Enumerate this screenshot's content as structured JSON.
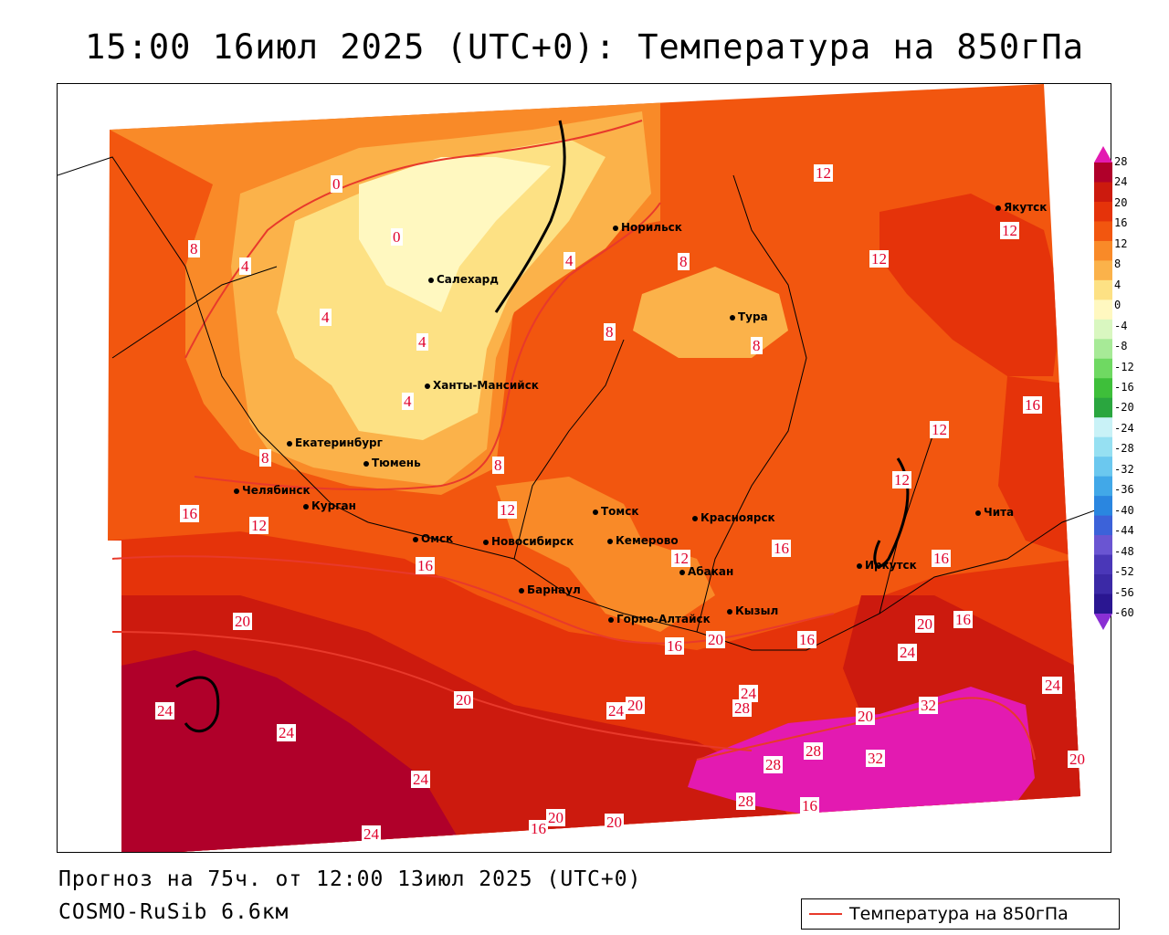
{
  "title": "15:00 16июл 2025 (UTC+0): Температура на 850гПа",
  "footer": {
    "forecast": "Прогноз на 75ч. от 12:00 13июл 2025 (UTC+0)",
    "model": "COSMO-RuSib 6.6км"
  },
  "legend": {
    "label": "Температура на 850гПа",
    "line_color": "#e8392b"
  },
  "colorbar": {
    "ticks": [
      "28",
      "24",
      "20",
      "16",
      "12",
      "8",
      "4",
      "0",
      "-4",
      "-8",
      "-12",
      "-16",
      "-20",
      "-24",
      "-28",
      "-32",
      "-36",
      "-40",
      "-44",
      "-48",
      "-52",
      "-56",
      "-60"
    ],
    "colors": [
      "#b0002a",
      "#cc1a0e",
      "#e5330a",
      "#f2560f",
      "#f98a28",
      "#fbb24a",
      "#fde184",
      "#fff8c0",
      "#d9f7c0",
      "#a7ea97",
      "#6fd962",
      "#3ebf3a",
      "#2aa63f",
      "#c9f2f7",
      "#96e0f2",
      "#6bc8ef",
      "#41a8e8",
      "#2a86e0",
      "#3c62d9",
      "#6a55d2",
      "#4a37b8",
      "#3b29a6",
      "#2a1691"
    ]
  },
  "cities": [
    {
      "name": "Норильск"
    },
    {
      "name": "Якутск"
    },
    {
      "name": "Салехард"
    },
    {
      "name": "Тура"
    },
    {
      "name": "Ханты-Мансийск"
    },
    {
      "name": "Екатеринбург"
    },
    {
      "name": "Тюмень"
    },
    {
      "name": "Челябинск"
    },
    {
      "name": "Курган"
    },
    {
      "name": "Омск"
    },
    {
      "name": "Новосибирск"
    },
    {
      "name": "Томск"
    },
    {
      "name": "Кемерово"
    },
    {
      "name": "Красноярск"
    },
    {
      "name": "Абакан"
    },
    {
      "name": "Барнаул"
    },
    {
      "name": "Горно-Алтайск"
    },
    {
      "name": "Кызыл"
    },
    {
      "name": "Иркутск"
    },
    {
      "name": "Чита"
    }
  ],
  "contour_labels": [
    "0",
    "0",
    "4",
    "4",
    "8",
    "8",
    "4",
    "4",
    "4",
    "8",
    "8",
    "8",
    "8",
    "12",
    "12",
    "12",
    "12",
    "12",
    "12",
    "12",
    "12",
    "16",
    "16",
    "16",
    "16",
    "16",
    "16",
    "16",
    "16",
    "20",
    "20",
    "20",
    "20",
    "20",
    "20",
    "20",
    "20",
    "20",
    "20",
    "24",
    "24",
    "24",
    "24",
    "24",
    "24",
    "24",
    "24",
    "28",
    "28",
    "28",
    "28",
    "32",
    "32",
    "16",
    "16"
  ]
}
